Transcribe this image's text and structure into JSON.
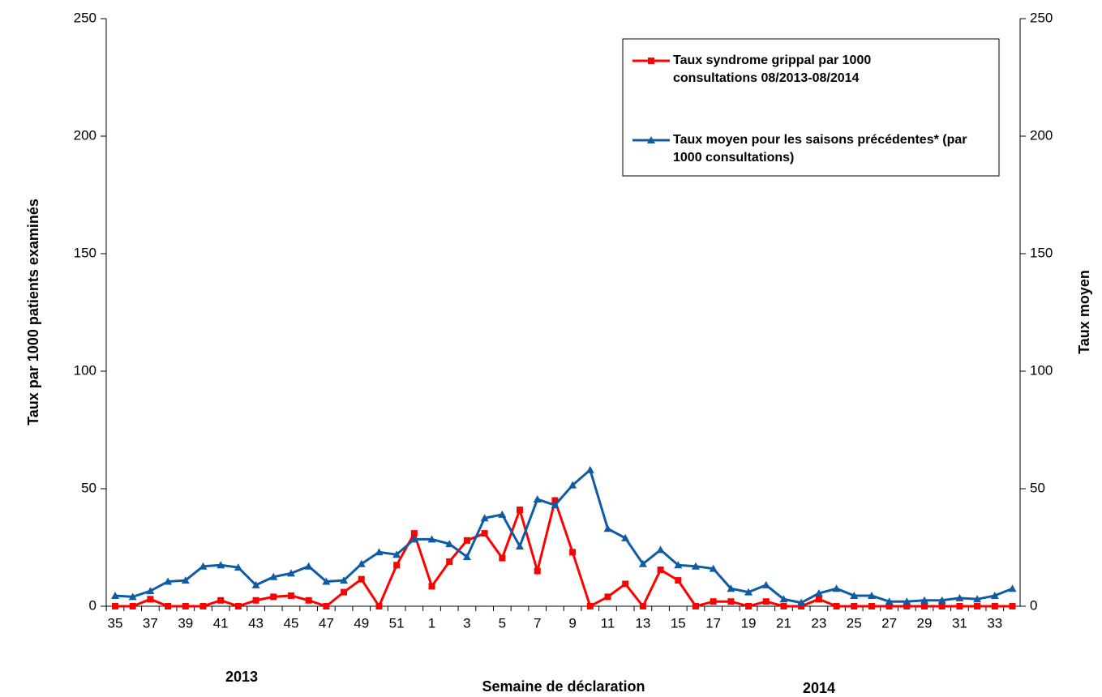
{
  "chart_data": {
    "type": "line",
    "x_label": "Semaine de déclaration",
    "y_label": "Taux par 1000 patients examinés",
    "y2_label": "Taux moyen",
    "annotations": [
      "2013",
      "2014"
    ],
    "categories": [
      35,
      null,
      37,
      null,
      39,
      null,
      41,
      null,
      43,
      null,
      45,
      null,
      47,
      null,
      49,
      null,
      51,
      null,
      1,
      null,
      3,
      null,
      5,
      null,
      7,
      null,
      9,
      null,
      11,
      null,
      13,
      null,
      15,
      null,
      17,
      null,
      19,
      null,
      21,
      null,
      23,
      null,
      25,
      null,
      27,
      null,
      29,
      null,
      31,
      null,
      33,
      null
    ],
    "series": [
      {
        "name": "Taux syndrome grippal par 1000 consultations 08/2013-08/2014",
        "color": "#ff0000",
        "marker": "square",
        "values": [
          0,
          0,
          3,
          0,
          0,
          0,
          2.5,
          0,
          2.5,
          4,
          4.5,
          2.5,
          0,
          6,
          11.5,
          0,
          17.5,
          31,
          8.5,
          19,
          28,
          31,
          20.5,
          41,
          15,
          45,
          23,
          0,
          4,
          9.5,
          0,
          15.5,
          11,
          0,
          2,
          2,
          0,
          2,
          0,
          0,
          3,
          0,
          0,
          0,
          0,
          0,
          0,
          0,
          0,
          0,
          0,
          0
        ]
      },
      {
        "name": "Taux moyen pour les saisons précédentes* (par 1000 consultations)",
        "color": "#0f5ba4",
        "marker": "triangle",
        "axis": "y2",
        "values": [
          4.5,
          4,
          6.5,
          10.5,
          11,
          17,
          17.5,
          16.5,
          9,
          12.5,
          14,
          17,
          10.5,
          11,
          18,
          23,
          22,
          28.5,
          28.5,
          26.5,
          21,
          37.5,
          39,
          25.5,
          45.5,
          43,
          51.5,
          58,
          33,
          29,
          18,
          24,
          17.5,
          17,
          16,
          7.5,
          6,
          9,
          3,
          1.5,
          5.5,
          7.5,
          4.5,
          4.5,
          2,
          2,
          2.5,
          2.5,
          3.5,
          3,
          4.5,
          7.5
        ]
      }
    ],
    "ylim": [
      0,
      250
    ],
    "yticks": [
      0,
      50,
      100,
      150,
      200,
      250
    ],
    "y2lim": [
      0,
      250
    ],
    "y2ticks": [
      0,
      50,
      100,
      150,
      200,
      250
    ],
    "grid": false,
    "legend": "upper right"
  }
}
